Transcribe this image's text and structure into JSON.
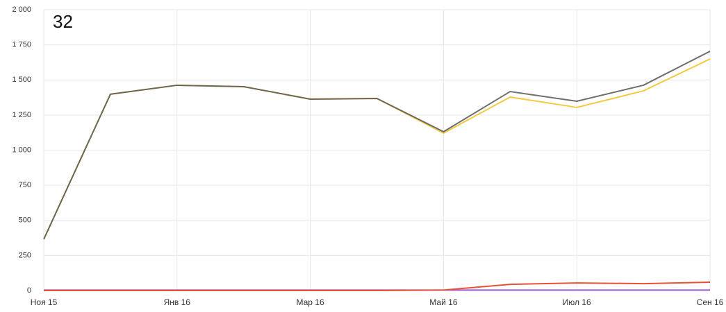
{
  "chart_data": {
    "type": "line",
    "annotation": "32",
    "categories": [
      "Ноя 15",
      null,
      "Янв 16",
      null,
      "Мар 16",
      null,
      "Май 16",
      null,
      "Июл 16",
      null,
      "Сен 16"
    ],
    "series": [
      {
        "color": "#9b59c9",
        "values": [
          3,
          3,
          3,
          3,
          3,
          3,
          3,
          3,
          3,
          3,
          3
        ]
      },
      {
        "color": "#e8503a",
        "values": [
          0,
          0,
          0,
          0,
          0,
          0,
          3,
          44,
          54,
          49,
          59
        ]
      },
      {
        "color": "#f5c842",
        "values": [
          365,
          1398,
          1462,
          1452,
          1363,
          1368,
          1121,
          1378,
          1304,
          1422,
          1649
        ]
      },
      {
        "color": "#555555",
        "values": [
          365,
          1398,
          1462,
          1452,
          1363,
          1368,
          1131,
          1417,
          1348,
          1462,
          1704
        ]
      }
    ],
    "ylim": [
      0,
      2000
    ],
    "yticks": [
      0,
      250,
      500,
      750,
      {
        "value": 1000,
        "label": "1 000"
      },
      {
        "value": 1250,
        "label": "1 250"
      },
      {
        "value": 1500,
        "label": "1 500"
      },
      {
        "value": 1750,
        "label": "1 750"
      },
      {
        "value": 2000,
        "label": "2 000"
      }
    ],
    "grid": true
  }
}
